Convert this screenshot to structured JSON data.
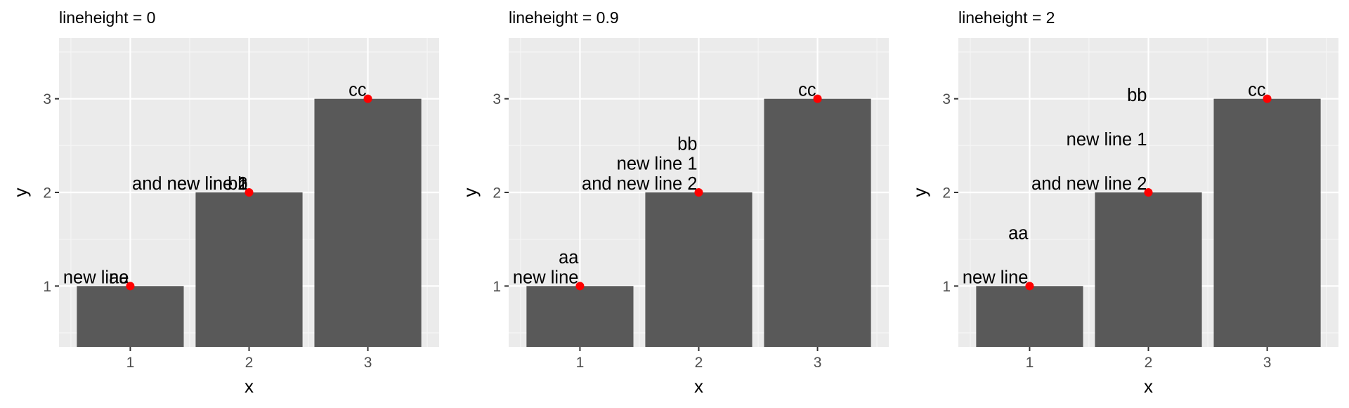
{
  "colors": {
    "panel_bg": "#EBEBEB",
    "grid_major": "#FFFFFF",
    "grid_minor": "#F5F5F5",
    "bar_fill": "#595959",
    "point": "#FF0000",
    "tick_text": "#4D4D4D",
    "text": "#000000"
  },
  "chart_data": [
    {
      "type": "bar",
      "title": "lineheight = 0",
      "xlabel": "x",
      "ylabel": "y",
      "x_ticks": [
        "1",
        "2",
        "3"
      ],
      "y_ticks": [
        "1",
        "2",
        "3"
      ],
      "categories": [
        "1",
        "2",
        "3"
      ],
      "values": [
        1,
        2,
        3
      ],
      "ylim": [
        0.35,
        3.65
      ],
      "grid": true,
      "points": [
        {
          "x": 1,
          "y": 1
        },
        {
          "x": 2,
          "y": 2
        },
        {
          "x": 3,
          "y": 3
        }
      ],
      "labels": [
        {
          "x": 1,
          "y": 1,
          "lines": [
            "aa",
            "new line"
          ]
        },
        {
          "x": 2,
          "y": 2,
          "lines": [
            "bb",
            "new line 1",
            "and new line 2"
          ]
        },
        {
          "x": 3,
          "y": 3,
          "lines": [
            "cc"
          ]
        }
      ],
      "lineheight": 0
    },
    {
      "type": "bar",
      "title": "lineheight = 0.9",
      "xlabel": "x",
      "ylabel": "y",
      "x_ticks": [
        "1",
        "2",
        "3"
      ],
      "y_ticks": [
        "1",
        "2",
        "3"
      ],
      "categories": [
        "1",
        "2",
        "3"
      ],
      "values": [
        1,
        2,
        3
      ],
      "ylim": [
        0.35,
        3.65
      ],
      "grid": true,
      "points": [
        {
          "x": 1,
          "y": 1
        },
        {
          "x": 2,
          "y": 2
        },
        {
          "x": 3,
          "y": 3
        }
      ],
      "labels": [
        {
          "x": 1,
          "y": 1,
          "lines": [
            "aa",
            "new line"
          ]
        },
        {
          "x": 2,
          "y": 2,
          "lines": [
            "bb",
            "new line 1",
            "and new line 2"
          ]
        },
        {
          "x": 3,
          "y": 3,
          "lines": [
            "cc"
          ]
        }
      ],
      "lineheight": 0.9
    },
    {
      "type": "bar",
      "title": "lineheight = 2",
      "xlabel": "x",
      "ylabel": "y",
      "x_ticks": [
        "1",
        "2",
        "3"
      ],
      "y_ticks": [
        "1",
        "2",
        "3"
      ],
      "categories": [
        "1",
        "2",
        "3"
      ],
      "values": [
        1,
        2,
        3
      ],
      "ylim": [
        0.35,
        3.65
      ],
      "grid": true,
      "points": [
        {
          "x": 1,
          "y": 1
        },
        {
          "x": 2,
          "y": 2
        },
        {
          "x": 3,
          "y": 3
        }
      ],
      "labels": [
        {
          "x": 1,
          "y": 1,
          "lines": [
            "aa",
            "new line"
          ]
        },
        {
          "x": 2,
          "y": 2,
          "lines": [
            "bb",
            "new line 1",
            "and new line 2"
          ]
        },
        {
          "x": 3,
          "y": 3,
          "lines": [
            "cc"
          ]
        }
      ],
      "lineheight": 2
    }
  ]
}
